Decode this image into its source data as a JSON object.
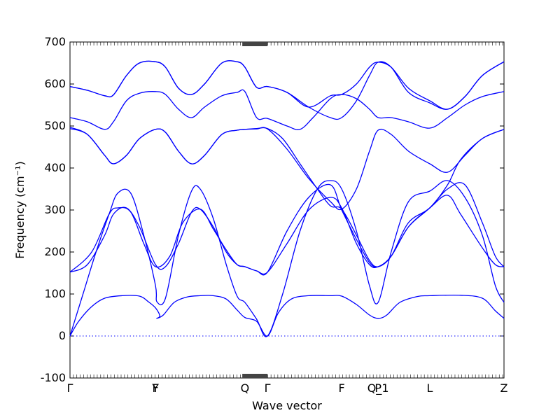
{
  "chart_data": {
    "type": "line",
    "title": "",
    "xlabel": "Wave vector",
    "ylabel": "Frequency (cm⁻¹)",
    "ylim": [
      -100,
      700
    ],
    "grid": false,
    "legend": "none",
    "line_color": "#0000ff",
    "zero_line_color": "#0000ff",
    "y_ticks": [
      -100,
      0,
      100,
      200,
      300,
      400,
      500,
      600,
      700
    ],
    "high_symmetry_points": [
      {
        "label": "Γ",
        "x": 0.0
      },
      {
        "label": "Y",
        "x": 0.197
      },
      {
        "label": "F",
        "x": 0.197
      },
      {
        "label": "Q",
        "x": 0.403
      },
      {
        "label": "Γ",
        "x": 0.455
      },
      {
        "label": "F",
        "x": 0.626
      },
      {
        "label": "P",
        "x": 0.71
      },
      {
        "label": "Q_1",
        "x": 0.71
      },
      {
        "label": "L",
        "x": 0.829
      },
      {
        "label": "Z",
        "x": 1.0
      }
    ],
    "series": [
      {
        "values": [
          [
            0.0,
            0
          ],
          [
            0.02,
            35
          ],
          [
            0.05,
            70
          ],
          [
            0.08,
            90
          ],
          [
            0.12,
            96
          ],
          [
            0.16,
            95
          ],
          [
            0.18,
            82
          ],
          [
            0.197,
            67
          ],
          [
            0.207,
            48
          ],
          [
            0.2,
            42
          ],
          [
            0.215,
            50
          ],
          [
            0.24,
            80
          ],
          [
            0.27,
            93
          ],
          [
            0.3,
            96
          ],
          [
            0.33,
            96
          ],
          [
            0.36,
            88
          ],
          [
            0.385,
            62
          ],
          [
            0.403,
            44
          ],
          [
            0.43,
            35
          ],
          [
            0.455,
            0
          ],
          [
            0.48,
            55
          ],
          [
            0.51,
            88
          ],
          [
            0.55,
            96
          ],
          [
            0.6,
            96
          ],
          [
            0.626,
            95
          ],
          [
            0.66,
            75
          ],
          [
            0.69,
            50
          ],
          [
            0.71,
            42
          ],
          [
            0.73,
            50
          ],
          [
            0.76,
            80
          ],
          [
            0.8,
            94
          ],
          [
            0.829,
            96
          ],
          [
            0.9,
            97
          ],
          [
            0.95,
            90
          ],
          [
            0.98,
            60
          ],
          [
            1.0,
            42
          ]
        ]
      },
      {
        "values": [
          [
            0.0,
            0
          ],
          [
            0.03,
            100
          ],
          [
            0.06,
            200
          ],
          [
            0.09,
            290
          ],
          [
            0.11,
            340
          ],
          [
            0.14,
            340
          ],
          [
            0.17,
            240
          ],
          [
            0.197,
            120
          ],
          [
            0.2,
            82
          ],
          [
            0.22,
            90
          ],
          [
            0.25,
            240
          ],
          [
            0.28,
            345
          ],
          [
            0.3,
            350
          ],
          [
            0.33,
            280
          ],
          [
            0.36,
            170
          ],
          [
            0.385,
            95
          ],
          [
            0.403,
            80
          ],
          [
            0.43,
            40
          ],
          [
            0.455,
            0
          ],
          [
            0.49,
            100
          ],
          [
            0.53,
            250
          ],
          [
            0.57,
            350
          ],
          [
            0.6,
            370
          ],
          [
            0.626,
            350
          ],
          [
            0.66,
            250
          ],
          [
            0.69,
            120
          ],
          [
            0.71,
            80
          ],
          [
            0.74,
            200
          ],
          [
            0.78,
            320
          ],
          [
            0.829,
            345
          ],
          [
            0.87,
            370
          ],
          [
            0.91,
            330
          ],
          [
            0.95,
            240
          ],
          [
            0.98,
            120
          ],
          [
            1.0,
            80
          ]
        ]
      },
      {
        "values": [
          [
            0.0,
            152
          ],
          [
            0.04,
            170
          ],
          [
            0.08,
            240
          ],
          [
            0.1,
            290
          ],
          [
            0.13,
            305
          ],
          [
            0.16,
            260
          ],
          [
            0.197,
            170
          ],
          [
            0.22,
            165
          ],
          [
            0.25,
            220
          ],
          [
            0.28,
            295
          ],
          [
            0.3,
            302
          ],
          [
            0.33,
            260
          ],
          [
            0.36,
            200
          ],
          [
            0.385,
            170
          ],
          [
            0.403,
            165
          ],
          [
            0.43,
            155
          ],
          [
            0.455,
            152
          ],
          [
            0.5,
            250
          ],
          [
            0.55,
            330
          ],
          [
            0.6,
            360
          ],
          [
            0.626,
            300
          ],
          [
            0.66,
            230
          ],
          [
            0.69,
            175
          ],
          [
            0.71,
            165
          ],
          [
            0.74,
            190
          ],
          [
            0.78,
            260
          ],
          [
            0.829,
            305
          ],
          [
            0.87,
            335
          ],
          [
            0.9,
            290
          ],
          [
            0.95,
            210
          ],
          [
            0.98,
            170
          ],
          [
            1.0,
            165
          ]
        ]
      },
      {
        "values": [
          [
            0.0,
            152
          ],
          [
            0.05,
            200
          ],
          [
            0.09,
            290
          ],
          [
            0.11,
            305
          ],
          [
            0.14,
            295
          ],
          [
            0.17,
            220
          ],
          [
            0.197,
            165
          ],
          [
            0.23,
            190
          ],
          [
            0.26,
            270
          ],
          [
            0.3,
            302
          ],
          [
            0.33,
            255
          ],
          [
            0.36,
            205
          ],
          [
            0.385,
            170
          ],
          [
            0.403,
            165
          ],
          [
            0.43,
            155
          ],
          [
            0.455,
            152
          ],
          [
            0.5,
            220
          ],
          [
            0.55,
            300
          ],
          [
            0.6,
            330
          ],
          [
            0.626,
            305
          ],
          [
            0.66,
            220
          ],
          [
            0.69,
            170
          ],
          [
            0.71,
            165
          ],
          [
            0.74,
            190
          ],
          [
            0.78,
            260
          ],
          [
            0.829,
            305
          ],
          [
            0.87,
            350
          ],
          [
            0.91,
            360
          ],
          [
            0.95,
            270
          ],
          [
            0.98,
            190
          ],
          [
            1.0,
            165
          ]
        ]
      },
      {
        "values": [
          [
            0.0,
            497
          ],
          [
            0.04,
            480
          ],
          [
            0.08,
            430
          ],
          [
            0.1,
            410
          ],
          [
            0.13,
            430
          ],
          [
            0.16,
            470
          ],
          [
            0.197,
            492
          ],
          [
            0.22,
            485
          ],
          [
            0.25,
            440
          ],
          [
            0.28,
            410
          ],
          [
            0.31,
            430
          ],
          [
            0.35,
            480
          ],
          [
            0.385,
            490
          ],
          [
            0.403,
            492
          ],
          [
            0.43,
            494
          ],
          [
            0.455,
            494
          ],
          [
            0.49,
            470
          ],
          [
            0.53,
            410
          ],
          [
            0.57,
            350
          ],
          [
            0.6,
            310
          ],
          [
            0.626,
            302
          ],
          [
            0.66,
            240
          ],
          [
            0.69,
            180
          ],
          [
            0.71,
            165
          ],
          [
            0.74,
            190
          ],
          [
            0.78,
            270
          ],
          [
            0.829,
            305
          ],
          [
            0.87,
            360
          ],
          [
            0.9,
            420
          ],
          [
            0.95,
            470
          ],
          [
            1.0,
            492
          ]
        ]
      },
      {
        "values": [
          [
            0.0,
            494
          ],
          [
            0.04,
            480
          ],
          [
            0.08,
            430
          ],
          [
            0.1,
            410
          ],
          [
            0.13,
            430
          ],
          [
            0.16,
            470
          ],
          [
            0.197,
            492
          ],
          [
            0.22,
            485
          ],
          [
            0.25,
            440
          ],
          [
            0.28,
            410
          ],
          [
            0.31,
            430
          ],
          [
            0.35,
            480
          ],
          [
            0.385,
            490
          ],
          [
            0.403,
            492
          ],
          [
            0.43,
            493
          ],
          [
            0.455,
            493
          ],
          [
            0.5,
            445
          ],
          [
            0.55,
            375
          ],
          [
            0.6,
            320
          ],
          [
            0.626,
            302
          ],
          [
            0.66,
            350
          ],
          [
            0.69,
            440
          ],
          [
            0.71,
            490
          ],
          [
            0.74,
            480
          ],
          [
            0.78,
            440
          ],
          [
            0.829,
            410
          ],
          [
            0.87,
            390
          ],
          [
            0.91,
            430
          ],
          [
            0.95,
            470
          ],
          [
            1.0,
            492
          ]
        ]
      },
      {
        "values": [
          [
            0.0,
            520
          ],
          [
            0.04,
            510
          ],
          [
            0.08,
            492
          ],
          [
            0.1,
            510
          ],
          [
            0.13,
            560
          ],
          [
            0.16,
            578
          ],
          [
            0.197,
            582
          ],
          [
            0.22,
            575
          ],
          [
            0.25,
            540
          ],
          [
            0.28,
            520
          ],
          [
            0.31,
            545
          ],
          [
            0.35,
            572
          ],
          [
            0.385,
            580
          ],
          [
            0.403,
            582
          ],
          [
            0.43,
            520
          ],
          [
            0.455,
            518
          ],
          [
            0.5,
            500
          ],
          [
            0.53,
            492
          ],
          [
            0.56,
            520
          ],
          [
            0.6,
            565
          ],
          [
            0.626,
            575
          ],
          [
            0.66,
            565
          ],
          [
            0.69,
            540
          ],
          [
            0.71,
            520
          ],
          [
            0.74,
            520
          ],
          [
            0.78,
            510
          ],
          [
            0.829,
            495
          ],
          [
            0.87,
            520
          ],
          [
            0.91,
            550
          ],
          [
            0.95,
            570
          ],
          [
            1.0,
            582
          ]
        ]
      },
      {
        "values": [
          [
            0.0,
            594
          ],
          [
            0.04,
            585
          ],
          [
            0.08,
            572
          ],
          [
            0.1,
            574
          ],
          [
            0.13,
            620
          ],
          [
            0.16,
            650
          ],
          [
            0.197,
            653
          ],
          [
            0.22,
            640
          ],
          [
            0.25,
            590
          ],
          [
            0.28,
            575
          ],
          [
            0.31,
            600
          ],
          [
            0.35,
            650
          ],
          [
            0.385,
            653
          ],
          [
            0.403,
            640
          ],
          [
            0.43,
            592
          ],
          [
            0.455,
            594
          ],
          [
            0.5,
            580
          ],
          [
            0.55,
            545
          ],
          [
            0.6,
            520
          ],
          [
            0.626,
            520
          ],
          [
            0.66,
            560
          ],
          [
            0.69,
            620
          ],
          [
            0.71,
            652
          ],
          [
            0.74,
            640
          ],
          [
            0.78,
            580
          ],
          [
            0.829,
            555
          ],
          [
            0.87,
            540
          ],
          [
            0.91,
            570
          ],
          [
            0.95,
            620
          ],
          [
            1.0,
            653
          ]
        ]
      },
      {
        "values": [
          [
            0.0,
            594
          ],
          [
            0.04,
            585
          ],
          [
            0.08,
            572
          ],
          [
            0.1,
            574
          ],
          [
            0.13,
            620
          ],
          [
            0.16,
            650
          ],
          [
            0.197,
            653
          ],
          [
            0.22,
            640
          ],
          [
            0.25,
            590
          ],
          [
            0.28,
            575
          ],
          [
            0.31,
            600
          ],
          [
            0.35,
            650
          ],
          [
            0.385,
            653
          ],
          [
            0.403,
            640
          ],
          [
            0.43,
            592
          ],
          [
            0.455,
            594
          ],
          [
            0.5,
            580
          ],
          [
            0.55,
            545
          ],
          [
            0.6,
            572
          ],
          [
            0.626,
            575
          ],
          [
            0.66,
            600
          ],
          [
            0.69,
            640
          ],
          [
            0.71,
            652
          ],
          [
            0.74,
            640
          ],
          [
            0.78,
            590
          ],
          [
            0.829,
            560
          ],
          [
            0.87,
            540
          ],
          [
            0.91,
            570
          ],
          [
            0.95,
            620
          ],
          [
            1.0,
            653
          ]
        ]
      }
    ]
  }
}
